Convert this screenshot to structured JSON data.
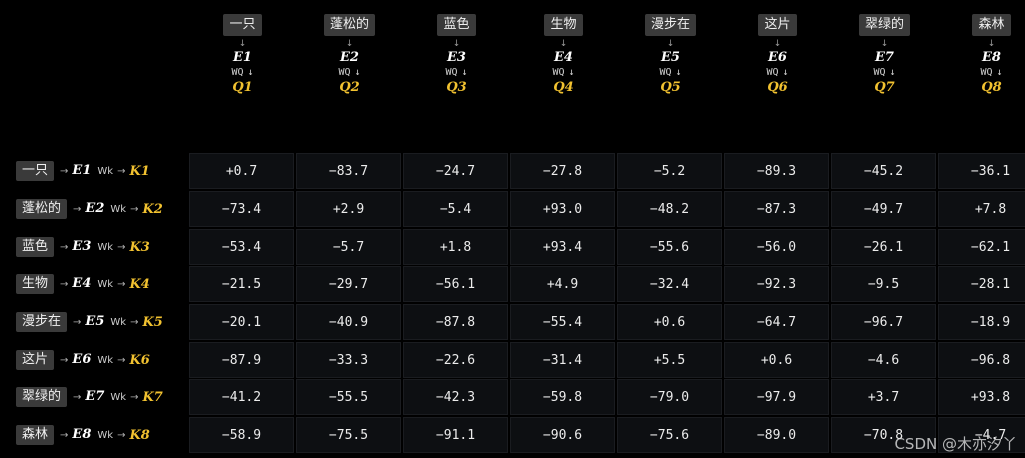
{
  "tokens": [
    "一只",
    "蓬松的",
    "蓝色",
    "生物",
    "漫步在",
    "这片",
    "翠绿的",
    "森林"
  ],
  "e_labels": [
    "E1",
    "E2",
    "E3",
    "E4",
    "E5",
    "E6",
    "E7",
    "E8"
  ],
  "q_labels": [
    "Q1",
    "Q2",
    "Q3",
    "Q4",
    "Q5",
    "Q6",
    "Q7",
    "Q8"
  ],
  "k_labels": [
    "K1",
    "K2",
    "K3",
    "K4",
    "K5",
    "K6",
    "K7",
    "K8"
  ],
  "wq_text": "WQ",
  "wk_text": "Wk",
  "down_arrow": "↓",
  "right_arrow": "→",
  "matrix": [
    [
      "+0.7",
      "−83.7",
      "−24.7",
      "−27.8",
      "−5.2",
      "−89.3",
      "−45.2",
      "−36.1"
    ],
    [
      "−73.4",
      "+2.9",
      "−5.4",
      "+93.0",
      "−48.2",
      "−87.3",
      "−49.7",
      "+7.8"
    ],
    [
      "−53.4",
      "−5.7",
      "+1.8",
      "+93.4",
      "−55.6",
      "−56.0",
      "−26.1",
      "−62.1"
    ],
    [
      "−21.5",
      "−29.7",
      "−56.1",
      "+4.9",
      "−32.4",
      "−92.3",
      "−9.5",
      "−28.1"
    ],
    [
      "−20.1",
      "−40.9",
      "−87.8",
      "−55.4",
      "+0.6",
      "−64.7",
      "−96.7",
      "−18.9"
    ],
    [
      "−87.9",
      "−33.3",
      "−22.6",
      "−31.4",
      "+5.5",
      "+0.6",
      "−4.6",
      "−96.8"
    ],
    [
      "−41.2",
      "−55.5",
      "−42.3",
      "−59.8",
      "−79.0",
      "−97.9",
      "+3.7",
      "+93.8"
    ],
    [
      "−58.9",
      "−75.5",
      "−91.1",
      "−90.6",
      "−75.6",
      "−89.0",
      "−70.8",
      "−4.7"
    ]
  ],
  "watermark": "CSDN @木亦汐丫",
  "colors": {
    "background": "#000000",
    "chip": "#3a3a3a",
    "cell": "#0d0f12",
    "accent_yellow": "#f2c230"
  }
}
